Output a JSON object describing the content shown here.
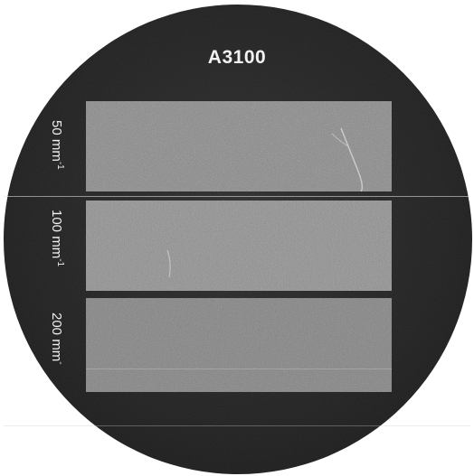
{
  "title": "A3100",
  "labels": [
    {
      "text": "50 mm",
      "exponent": "-1"
    },
    {
      "text": "100 mm",
      "exponent": "-1"
    },
    {
      "text": "200 mm",
      "exponent": "-"
    }
  ],
  "colors": {
    "background": "#ffffff",
    "disc": "#222222",
    "band": "#8a8a8a",
    "text": "#f0f0f0"
  }
}
